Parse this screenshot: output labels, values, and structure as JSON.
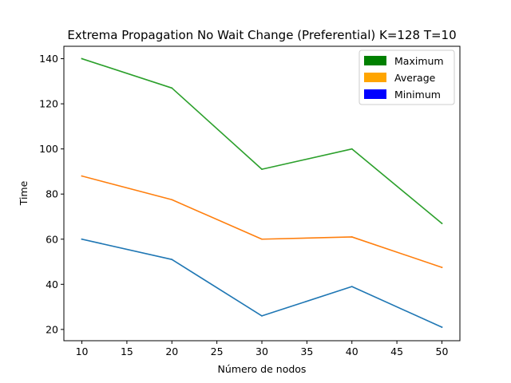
{
  "chart_data": {
    "type": "line",
    "title": "Extrema Propagation No Wait Change (Preferential) K=128 T=10",
    "xlabel": "Número de nodos",
    "ylabel": "Time",
    "x": [
      10,
      20,
      30,
      40,
      50
    ],
    "xlim": [
      8,
      52
    ],
    "ylim": [
      15,
      145.5
    ],
    "xticks": [
      10,
      15,
      20,
      25,
      30,
      35,
      40,
      45,
      50
    ],
    "yticks": [
      20,
      40,
      60,
      80,
      100,
      120,
      140
    ],
    "series": [
      {
        "values": [
          60,
          51,
          26,
          39,
          21
        ],
        "color": "#1f77b4"
      },
      {
        "values": [
          88,
          77.5,
          60,
          61,
          47.5
        ],
        "color": "#ff7f0e"
      },
      {
        "values": [
          140,
          127,
          91,
          100,
          67
        ],
        "color": "#2ca02c"
      }
    ],
    "legend": {
      "placement": "top-right",
      "entries": [
        {
          "label": "Maximum",
          "color": "#008000"
        },
        {
          "label": "Average",
          "color": "#ffa500"
        },
        {
          "label": "Minimum",
          "color": "#0000ff"
        }
      ]
    },
    "grid": false
  }
}
